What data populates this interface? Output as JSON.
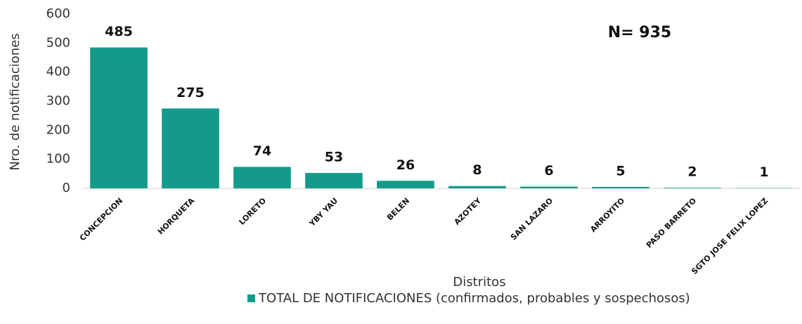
{
  "chart_data": {
    "type": "bar",
    "annotation": "N= 935",
    "xlabel": "Distritos",
    "ylabel": "Nro. de notificaciones",
    "categories": [
      "CONCEPCION",
      "HORQUETA",
      "LORETO",
      "YBY YAU",
      "BELEN",
      "AZOTEY",
      "SAN LAZARO",
      "ARROYITO",
      "PASO BARRETO",
      "SGTO JOSE FELIX LOPEZ"
    ],
    "series": [
      {
        "name": "TOTAL DE NOTIFICACIONES (confirmados, probables y sospechosos)",
        "color": "#139a8a",
        "values": [
          485,
          275,
          74,
          53,
          26,
          8,
          6,
          5,
          2,
          1
        ]
      }
    ],
    "ylim": [
      0,
      600
    ],
    "yticks": [
      0,
      100,
      200,
      300,
      400,
      500,
      600
    ],
    "grid": false,
    "legend": "bottom"
  }
}
